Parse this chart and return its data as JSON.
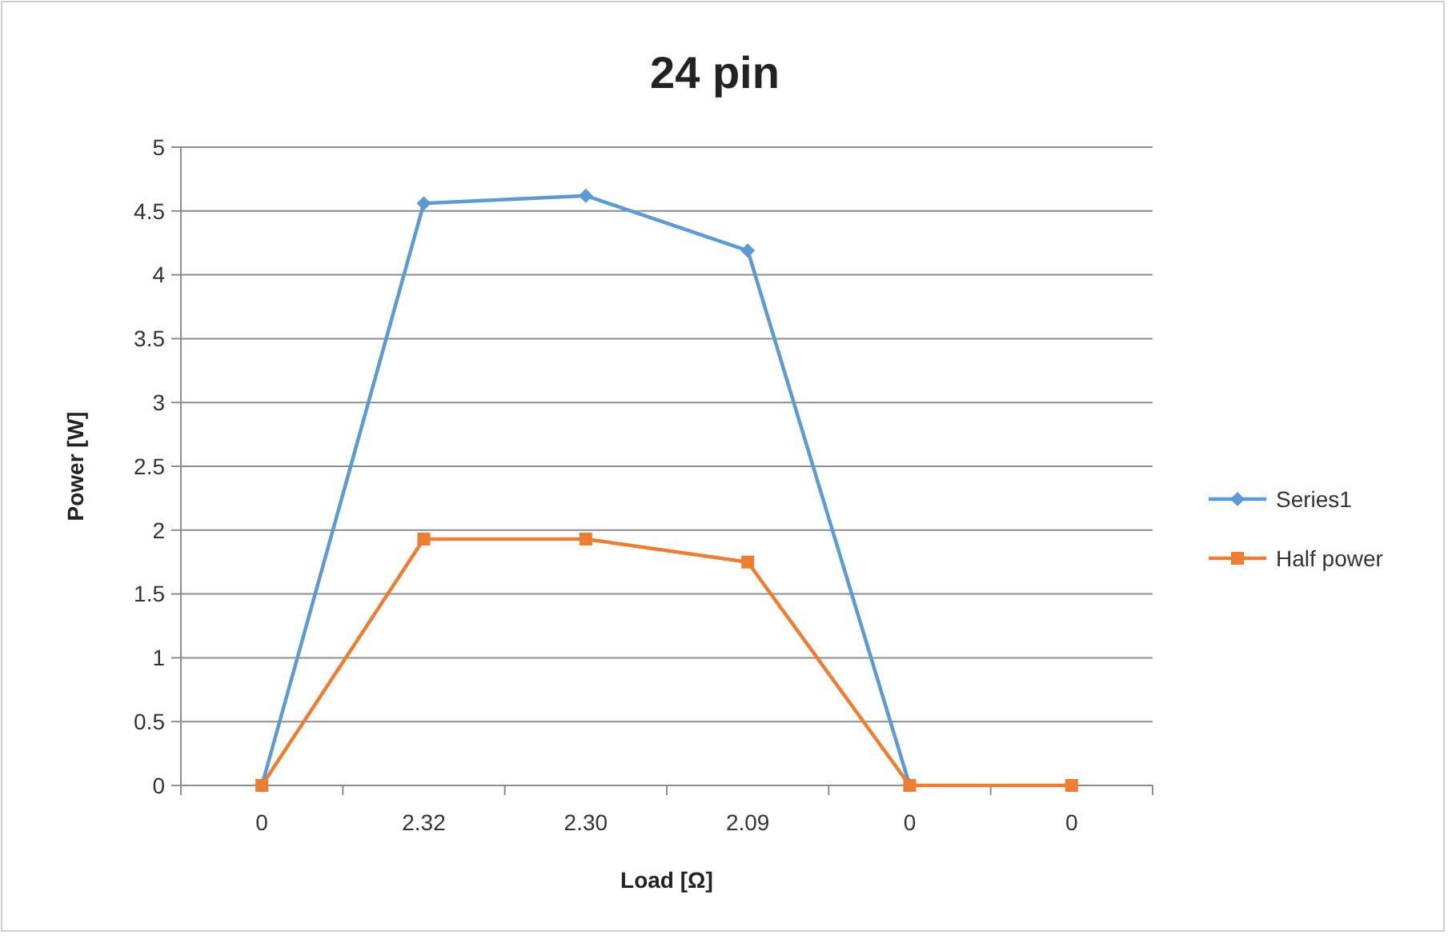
{
  "chart_data": {
    "type": "line",
    "title": "24 pin",
    "xlabel": "Load [Ω]",
    "ylabel": "Power [W]",
    "categories": [
      "0",
      "2.32",
      "2.30",
      "2.09",
      "0",
      "0"
    ],
    "series": [
      {
        "name": "Series1",
        "color": "#5b9bd5",
        "marker": "diamond",
        "values": [
          0,
          4.56,
          4.62,
          4.19,
          0,
          null
        ]
      },
      {
        "name": "Half power",
        "color": "#ed7d31",
        "marker": "square",
        "values": [
          0,
          1.93,
          1.93,
          1.75,
          0,
          0
        ]
      }
    ],
    "ylim": [
      0,
      5
    ],
    "yticks": [
      0,
      0.5,
      1,
      1.5,
      2,
      2.5,
      3,
      3.5,
      4,
      4.5,
      5
    ],
    "grid": "y",
    "legend": "right"
  }
}
